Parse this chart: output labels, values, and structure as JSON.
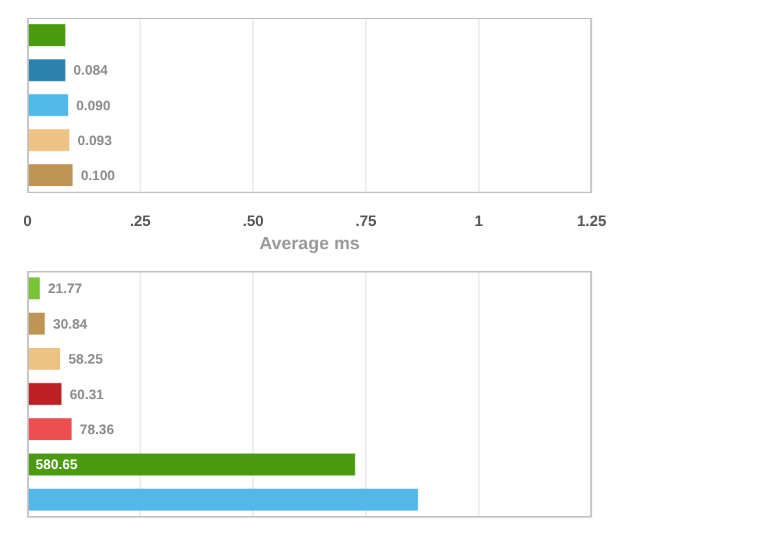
{
  "chart_data": [
    {
      "type": "bar",
      "orientation": "horizontal",
      "xlabel": "Average ms",
      "categories": [
        null,
        null,
        null,
        null,
        null
      ],
      "values": [
        0.084,
        0.084,
        0.09,
        0.093,
        0.1
      ],
      "colors": [
        "#4a9a0e",
        "#2a82ad",
        "#4fb9ea",
        "#edc283",
        "#bf9553"
      ],
      "value_labels": [
        null,
        "0.084",
        "0.090",
        "0.093",
        "0.100"
      ],
      "xlim": [
        0,
        1.25
      ],
      "xticks": [
        0,
        {
          "value": 0.25,
          "label": ".25"
        },
        {
          "value": 0.5,
          "label": ".50"
        },
        {
          "value": 0.75,
          "label": ".75"
        },
        1,
        1.25
      ],
      "grid": "x",
      "tick_labels": "x"
    },
    {
      "type": "bar",
      "orientation": "horizontal",
      "categories": [
        null,
        null,
        null,
        null,
        null,
        null,
        null
      ],
      "values": [
        21.77,
        30.84,
        58.25,
        60.31,
        78.36,
        580.65,
        692
      ],
      "colors": [
        "#76c535",
        "#bf9553",
        "#edc283",
        "#bc2023",
        "#ec4f4f",
        "#4a9a0e",
        "#52b8e9"
      ],
      "value_labels": [
        "21.77",
        "30.84",
        "58.25",
        "60.31",
        "78.36",
        "580.65",
        null
      ],
      "xlim": [
        0,
        1000
      ],
      "xticks": [
        0,
        200,
        400,
        600,
        800,
        1000
      ],
      "grid": "x",
      "tick_labels": false
    }
  ]
}
